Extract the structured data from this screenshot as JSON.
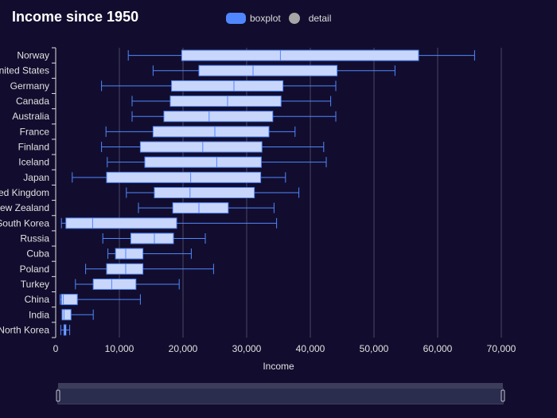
{
  "chart_data": {
    "type": "boxplot",
    "orientation": "horizontal",
    "title": "Income since 1950",
    "xlabel": "Income",
    "xlim": [
      0,
      70000
    ],
    "xticks": [
      0,
      10000,
      20000,
      30000,
      40000,
      50000,
      60000,
      70000
    ],
    "xtick_labels": [
      "0",
      "10,000",
      "20,000",
      "30,000",
      "40,000",
      "50,000",
      "60,000",
      "70,000"
    ],
    "grid": true,
    "legend": {
      "position": "top-center",
      "items": [
        {
          "name": "boxplot",
          "color": "#5087ff",
          "shape": "rounded-rect"
        },
        {
          "name": "detail",
          "color": "#a6a6a6",
          "shape": "circle"
        }
      ]
    },
    "categories": [
      "Norway",
      "United States",
      "Germany",
      "Canada",
      "Australia",
      "France",
      "Finland",
      "Iceland",
      "Japan",
      "United Kingdom",
      "New Zealand",
      "South Korea",
      "Russia",
      "Cuba",
      "Poland",
      "Turkey",
      "China",
      "India",
      "North Korea"
    ],
    "series": [
      {
        "name": "boxplot",
        "box_color": "#c9d6fb",
        "line_color": "#5087ff",
        "data": [
          [
            11400,
            19800,
            35300,
            57000,
            65800
          ],
          [
            15300,
            22500,
            31000,
            44200,
            53300
          ],
          [
            7200,
            18200,
            28000,
            35700,
            44000
          ],
          [
            12000,
            18000,
            27000,
            35400,
            43200
          ],
          [
            12000,
            17000,
            24100,
            34100,
            44000
          ],
          [
            7900,
            15300,
            25000,
            33500,
            37600
          ],
          [
            7200,
            13300,
            23100,
            32400,
            42100
          ],
          [
            8100,
            14000,
            25300,
            32300,
            42500
          ],
          [
            2600,
            8000,
            21200,
            32200,
            36100
          ],
          [
            11100,
            15500,
            21100,
            31200,
            38200
          ],
          [
            13000,
            18400,
            22500,
            27100,
            34300
          ],
          [
            900,
            1600,
            5800,
            19000,
            34700
          ],
          [
            7400,
            11800,
            15500,
            18500,
            23500
          ],
          [
            8200,
            9400,
            11000,
            13700,
            21300
          ],
          [
            4700,
            8000,
            11000,
            13700,
            24800
          ],
          [
            3100,
            5900,
            8800,
            12600,
            19400
          ],
          [
            700,
            900,
            1200,
            3400,
            13300
          ],
          [
            1000,
            1000,
            1300,
            2400,
            5900
          ],
          [
            800,
            1300,
            1400,
            1600,
            2200
          ]
        ]
      }
    ]
  }
}
